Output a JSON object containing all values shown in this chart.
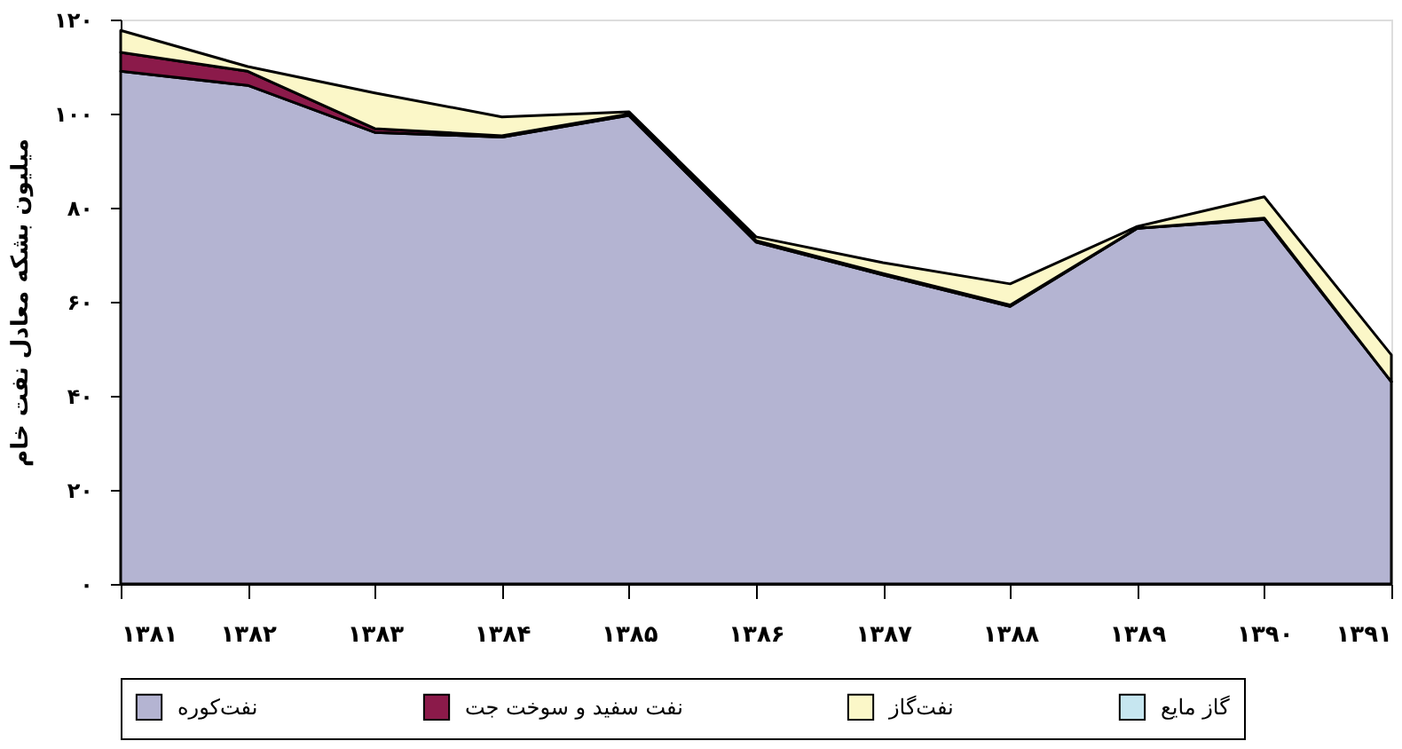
{
  "chart_data": {
    "type": "area",
    "stacked": true,
    "ylabel": "میلیون بشکه معادل نفت خام",
    "categories": [
      "۱۳۸۱",
      "۱۳۸۲",
      "۱۳۸۳",
      "۱۳۸۴",
      "۱۳۸۵",
      "۱۳۸۶",
      "۱۳۸۷",
      "۱۳۸۸",
      "۱۳۸۹",
      "۱۳۹۰",
      "۱۳۹۱"
    ],
    "series": [
      {
        "name": "نفت‌کوره",
        "color": "#b4b4d2",
        "values": [
          109,
          106,
          96,
          95,
          99.6,
          72.7,
          65.7,
          59,
          75.6,
          77.5,
          43
        ]
      },
      {
        "name": "نفت سفید و سوخت جت",
        "color": "#8b1a4a",
        "values": [
          4,
          3,
          0.8,
          0.3,
          0.3,
          0.3,
          0.3,
          0.3,
          0,
          0.3,
          0
        ]
      },
      {
        "name": "نفت‌گاز",
        "color": "#fbf7c8",
        "values": [
          4.7,
          1,
          7.6,
          4,
          0.5,
          0.8,
          2.3,
          4.5,
          0.4,
          4.5,
          5.7
        ]
      },
      {
        "name": "گاز مایع",
        "color": "#c6e6f0",
        "values": [
          null,
          null,
          null,
          null,
          null,
          null,
          null,
          null,
          null,
          null,
          null
        ]
      }
    ],
    "ylim": [
      0,
      120
    ],
    "yticks": [
      {
        "value": 0,
        "label": "۰"
      },
      {
        "value": 20,
        "label": "۲۰"
      },
      {
        "value": 40,
        "label": "۴۰"
      },
      {
        "value": 60,
        "label": "۶۰"
      },
      {
        "value": 80,
        "label": "۸۰"
      },
      {
        "value": 100,
        "label": "۱۰۰"
      },
      {
        "value": 120,
        "label": "۱۲۰"
      }
    ],
    "grid": false,
    "legend": "bottom"
  }
}
